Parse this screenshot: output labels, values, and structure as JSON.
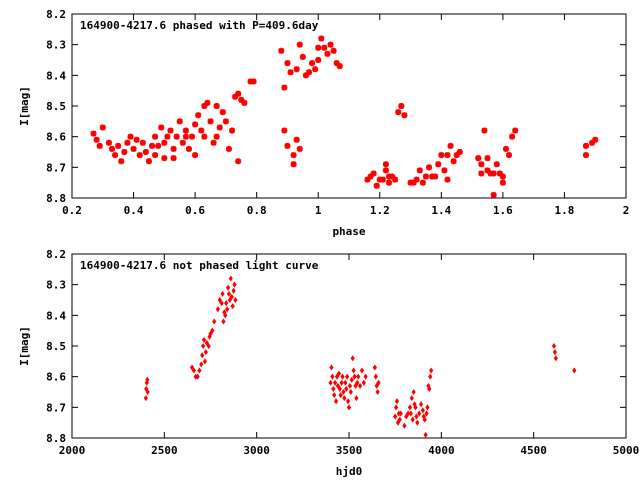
{
  "colors": {
    "points": "#ff0000",
    "axes": "#000000",
    "background": "#ffffff"
  },
  "chart_data": [
    {
      "type": "scatter",
      "title": "164900-4217.6 phased with P=409.6day",
      "xlabel": "phase",
      "ylabel": "I[mag]",
      "xlim": [
        0.2,
        2
      ],
      "ylim": [
        8.2,
        8.8
      ],
      "y_inverted": true,
      "grid": false,
      "marker": "asterisk",
      "x_ticks": [
        0.2,
        0.4,
        0.6,
        0.8,
        1,
        1.2,
        1.4,
        1.6,
        1.8,
        2
      ],
      "x_tick_labels": [
        "0.2",
        "0.4",
        "0.6",
        "0.8",
        "1",
        "1.2",
        "1.4",
        "1.6",
        "1.8",
        "2"
      ],
      "y_ticks": [
        8.2,
        8.3,
        8.4,
        8.5,
        8.6,
        8.7,
        8.8
      ],
      "y_tick_labels": [
        "8.2",
        "8.3",
        "8.4",
        "8.5",
        "8.6",
        "8.7",
        "8.8"
      ],
      "points": [
        [
          0.27,
          8.59
        ],
        [
          0.28,
          8.61
        ],
        [
          0.29,
          8.63
        ],
        [
          0.3,
          8.57
        ],
        [
          0.32,
          8.62
        ],
        [
          0.33,
          8.64
        ],
        [
          0.34,
          8.66
        ],
        [
          0.35,
          8.63
        ],
        [
          0.36,
          8.68
        ],
        [
          0.37,
          8.65
        ],
        [
          0.38,
          8.62
        ],
        [
          0.39,
          8.6
        ],
        [
          0.4,
          8.64
        ],
        [
          0.41,
          8.61
        ],
        [
          0.42,
          8.66
        ],
        [
          0.43,
          8.62
        ],
        [
          0.44,
          8.65
        ],
        [
          0.45,
          8.68
        ],
        [
          0.46,
          8.63
        ],
        [
          0.47,
          8.6
        ],
        [
          0.47,
          8.66
        ],
        [
          0.48,
          8.63
        ],
        [
          0.49,
          8.57
        ],
        [
          0.5,
          8.62
        ],
        [
          0.5,
          8.67
        ],
        [
          0.51,
          8.6
        ],
        [
          0.52,
          8.58
        ],
        [
          0.53,
          8.64
        ],
        [
          0.53,
          8.67
        ],
        [
          0.54,
          8.6
        ],
        [
          0.55,
          8.55
        ],
        [
          0.56,
          8.62
        ],
        [
          0.57,
          8.6
        ],
        [
          0.57,
          8.58
        ],
        [
          0.58,
          8.64
        ],
        [
          0.59,
          8.6
        ],
        [
          0.6,
          8.56
        ],
        [
          0.6,
          8.66
        ],
        [
          0.61,
          8.53
        ],
        [
          0.62,
          8.58
        ],
        [
          0.63,
          8.5
        ],
        [
          0.63,
          8.6
        ],
        [
          0.64,
          8.49
        ],
        [
          0.65,
          8.55
        ],
        [
          0.66,
          8.62
        ],
        [
          0.67,
          8.6
        ],
        [
          0.67,
          8.5
        ],
        [
          0.68,
          8.57
        ],
        [
          0.69,
          8.52
        ],
        [
          0.7,
          8.55
        ],
        [
          0.71,
          8.64
        ],
        [
          0.72,
          8.58
        ],
        [
          0.73,
          8.47
        ],
        [
          0.74,
          8.46
        ],
        [
          0.74,
          8.68
        ],
        [
          0.75,
          8.48
        ],
        [
          0.76,
          8.49
        ],
        [
          0.78,
          8.42
        ],
        [
          0.79,
          8.42
        ],
        [
          0.88,
          8.32
        ],
        [
          0.89,
          8.58
        ],
        [
          0.89,
          8.44
        ],
        [
          0.9,
          8.36
        ],
        [
          0.9,
          8.63
        ],
        [
          0.91,
          8.39
        ],
        [
          0.92,
          8.66
        ],
        [
          0.92,
          8.69
        ],
        [
          0.93,
          8.61
        ],
        [
          0.93,
          8.38
        ],
        [
          0.94,
          8.3
        ],
        [
          0.94,
          8.64
        ],
        [
          0.95,
          8.34
        ],
        [
          0.96,
          8.4
        ],
        [
          0.97,
          8.39
        ],
        [
          0.98,
          8.36
        ],
        [
          0.99,
          8.38
        ],
        [
          1.0,
          8.31
        ],
        [
          1.0,
          8.35
        ],
        [
          1.01,
          8.28
        ],
        [
          1.02,
          8.31
        ],
        [
          1.03,
          8.33
        ],
        [
          1.04,
          8.3
        ],
        [
          1.05,
          8.32
        ],
        [
          1.06,
          8.36
        ],
        [
          1.07,
          8.37
        ],
        [
          1.16,
          8.74
        ],
        [
          1.17,
          8.73
        ],
        [
          1.18,
          8.72
        ],
        [
          1.19,
          8.76
        ],
        [
          1.2,
          8.74
        ],
        [
          1.21,
          8.74
        ],
        [
          1.22,
          8.69
        ],
        [
          1.22,
          8.71
        ],
        [
          1.23,
          8.73
        ],
        [
          1.23,
          8.75
        ],
        [
          1.24,
          8.73
        ],
        [
          1.25,
          8.74
        ],
        [
          1.26,
          8.52
        ],
        [
          1.27,
          8.5
        ],
        [
          1.28,
          8.53
        ],
        [
          1.3,
          8.75
        ],
        [
          1.31,
          8.75
        ],
        [
          1.32,
          8.74
        ],
        [
          1.33,
          8.71
        ],
        [
          1.34,
          8.75
        ],
        [
          1.35,
          8.73
        ],
        [
          1.36,
          8.7
        ],
        [
          1.37,
          8.73
        ],
        [
          1.38,
          8.73
        ],
        [
          1.39,
          8.69
        ],
        [
          1.4,
          8.66
        ],
        [
          1.41,
          8.71
        ],
        [
          1.42,
          8.66
        ],
        [
          1.42,
          8.74
        ],
        [
          1.43,
          8.63
        ],
        [
          1.44,
          8.68
        ],
        [
          1.45,
          8.66
        ],
        [
          1.46,
          8.65
        ],
        [
          1.52,
          8.67
        ],
        [
          1.53,
          8.69
        ],
        [
          1.53,
          8.72
        ],
        [
          1.54,
          8.58
        ],
        [
          1.55,
          8.71
        ],
        [
          1.55,
          8.67
        ],
        [
          1.56,
          8.72
        ],
        [
          1.57,
          8.79
        ],
        [
          1.57,
          8.72
        ],
        [
          1.58,
          8.69
        ],
        [
          1.59,
          8.72
        ],
        [
          1.6,
          8.73
        ],
        [
          1.6,
          8.75
        ],
        [
          1.61,
          8.64
        ],
        [
          1.62,
          8.66
        ],
        [
          1.63,
          8.6
        ],
        [
          1.64,
          8.58
        ],
        [
          1.87,
          8.66
        ],
        [
          1.87,
          8.63
        ],
        [
          1.89,
          8.62
        ],
        [
          1.9,
          8.61
        ]
      ]
    },
    {
      "type": "scatter",
      "title": "164900-4217.6 not phased light curve",
      "xlabel": "hjd0",
      "ylabel": "I[mag]",
      "xlim": [
        2000,
        5000
      ],
      "ylim": [
        8.2,
        8.8
      ],
      "y_inverted": true,
      "grid": false,
      "marker": "diamond",
      "x_ticks": [
        2000,
        2500,
        3000,
        3500,
        4000,
        4500,
        5000
      ],
      "x_tick_labels": [
        "2000",
        "2500",
        "3000",
        "3500",
        "4000",
        "4500",
        "5000"
      ],
      "y_ticks": [
        8.2,
        8.3,
        8.4,
        8.5,
        8.6,
        8.7,
        8.8
      ],
      "y_tick_labels": [
        "8.2",
        "8.3",
        "8.4",
        "8.5",
        "8.6",
        "8.7",
        "8.8"
      ],
      "points": [
        [
          2400,
          8.67
        ],
        [
          2402,
          8.64
        ],
        [
          2405,
          8.62
        ],
        [
          2408,
          8.61
        ],
        [
          2410,
          8.65
        ],
        [
          2650,
          8.57
        ],
        [
          2660,
          8.58
        ],
        [
          2670,
          8.6
        ],
        [
          2680,
          8.6
        ],
        [
          2690,
          8.58
        ],
        [
          2700,
          8.56
        ],
        [
          2705,
          8.53
        ],
        [
          2710,
          8.5
        ],
        [
          2715,
          8.48
        ],
        [
          2720,
          8.55
        ],
        [
          2725,
          8.52
        ],
        [
          2730,
          8.49
        ],
        [
          2740,
          8.5
        ],
        [
          2745,
          8.47
        ],
        [
          2750,
          8.46
        ],
        [
          2760,
          8.45
        ],
        [
          2770,
          8.42
        ],
        [
          2790,
          8.38
        ],
        [
          2800,
          8.35
        ],
        [
          2810,
          8.36
        ],
        [
          2815,
          8.33
        ],
        [
          2820,
          8.42
        ],
        [
          2825,
          8.39
        ],
        [
          2830,
          8.4
        ],
        [
          2835,
          8.36
        ],
        [
          2840,
          8.38
        ],
        [
          2845,
          8.31
        ],
        [
          2850,
          8.33
        ],
        [
          2855,
          8.35
        ],
        [
          2860,
          8.28
        ],
        [
          2865,
          8.34
        ],
        [
          2870,
          8.37
        ],
        [
          2875,
          8.32
        ],
        [
          2880,
          8.3
        ],
        [
          2885,
          8.35
        ],
        [
          3400,
          8.62
        ],
        [
          3405,
          8.57
        ],
        [
          3410,
          8.6
        ],
        [
          3415,
          8.64
        ],
        [
          3420,
          8.66
        ],
        [
          3425,
          8.62
        ],
        [
          3430,
          8.68
        ],
        [
          3435,
          8.6
        ],
        [
          3440,
          8.63
        ],
        [
          3445,
          8.59
        ],
        [
          3450,
          8.64
        ],
        [
          3455,
          8.66
        ],
        [
          3460,
          8.62
        ],
        [
          3465,
          8.6
        ],
        [
          3470,
          8.65
        ],
        [
          3475,
          8.67
        ],
        [
          3480,
          8.62
        ],
        [
          3485,
          8.64
        ],
        [
          3490,
          8.6
        ],
        [
          3495,
          8.68
        ],
        [
          3500,
          8.7
        ],
        [
          3505,
          8.63
        ],
        [
          3510,
          8.65
        ],
        [
          3515,
          8.61
        ],
        [
          3520,
          8.54
        ],
        [
          3525,
          8.58
        ],
        [
          3530,
          8.6
        ],
        [
          3535,
          8.63
        ],
        [
          3540,
          8.67
        ],
        [
          3545,
          8.62
        ],
        [
          3550,
          8.6
        ],
        [
          3560,
          8.63
        ],
        [
          3570,
          8.58
        ],
        [
          3580,
          8.62
        ],
        [
          3590,
          8.6
        ],
        [
          3640,
          8.57
        ],
        [
          3645,
          8.6
        ],
        [
          3650,
          8.63
        ],
        [
          3655,
          8.65
        ],
        [
          3660,
          8.62
        ],
        [
          3750,
          8.73
        ],
        [
          3755,
          8.7
        ],
        [
          3760,
          8.68
        ],
        [
          3765,
          8.75
        ],
        [
          3770,
          8.72
        ],
        [
          3775,
          8.74
        ],
        [
          3780,
          8.72
        ],
        [
          3800,
          8.76
        ],
        [
          3810,
          8.73
        ],
        [
          3820,
          8.72
        ],
        [
          3830,
          8.7
        ],
        [
          3835,
          8.72
        ],
        [
          3840,
          8.67
        ],
        [
          3845,
          8.74
        ],
        [
          3850,
          8.65
        ],
        [
          3855,
          8.69
        ],
        [
          3860,
          8.7
        ],
        [
          3865,
          8.73
        ],
        [
          3870,
          8.75
        ],
        [
          3880,
          8.72
        ],
        [
          3890,
          8.69
        ],
        [
          3900,
          8.71
        ],
        [
          3905,
          8.73
        ],
        [
          3910,
          8.74
        ],
        [
          3915,
          8.79
        ],
        [
          3920,
          8.72
        ],
        [
          3925,
          8.7
        ],
        [
          3930,
          8.63
        ],
        [
          3935,
          8.64
        ],
        [
          3940,
          8.6
        ],
        [
          3945,
          8.58
        ],
        [
          4610,
          8.5
        ],
        [
          4615,
          8.52
        ],
        [
          4620,
          8.54
        ],
        [
          4720,
          8.58
        ]
      ]
    }
  ]
}
